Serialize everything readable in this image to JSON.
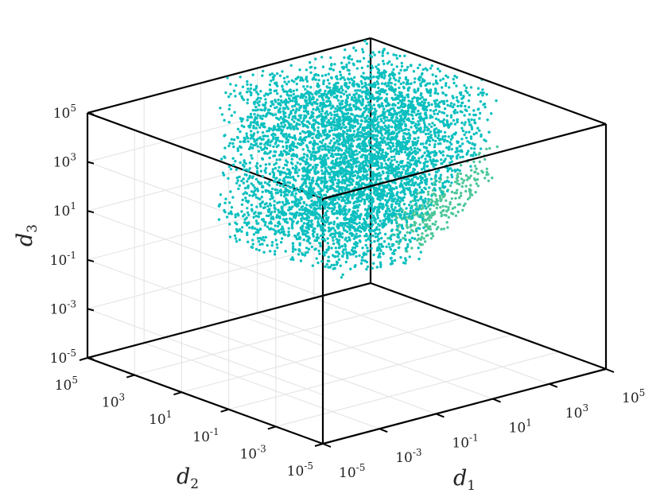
{
  "chart_data": {
    "type": "scatter",
    "projection": "3d",
    "scale": {
      "x": "log",
      "y": "log",
      "z": "log"
    },
    "grid": true,
    "box": true,
    "axes": {
      "x": {
        "label": "d",
        "label_sub": "1",
        "range": [
          1e-05,
          100000.0
        ],
        "ticks": [
          {
            "base": "10",
            "exp": "-5",
            "value": 1e-05
          },
          {
            "base": "10",
            "exp": "-3",
            "value": 0.001
          },
          {
            "base": "10",
            "exp": "-1",
            "value": 0.1
          },
          {
            "base": "10",
            "exp": "1",
            "value": 10.0
          },
          {
            "base": "10",
            "exp": "3",
            "value": 1000.0
          },
          {
            "base": "10",
            "exp": "5",
            "value": 100000.0
          }
        ]
      },
      "y": {
        "label": "d",
        "label_sub": "2",
        "range": [
          1e-05,
          100000.0
        ],
        "ticks": [
          {
            "base": "10",
            "exp": "-5",
            "value": 1e-05
          },
          {
            "base": "10",
            "exp": "-3",
            "value": 0.001
          },
          {
            "base": "10",
            "exp": "-1",
            "value": 0.1
          },
          {
            "base": "10",
            "exp": "1",
            "value": 10.0
          },
          {
            "base": "10",
            "exp": "3",
            "value": 1000.0
          },
          {
            "base": "10",
            "exp": "5",
            "value": 100000.0
          }
        ]
      },
      "z": {
        "label": "d",
        "label_sub": "3",
        "range": [
          1e-05,
          100000.0
        ],
        "ticks": [
          {
            "base": "10",
            "exp": "-5",
            "value": 1e-05
          },
          {
            "base": "10",
            "exp": "-3",
            "value": 0.001
          },
          {
            "base": "10",
            "exp": "-1",
            "value": 0.1
          },
          {
            "base": "10",
            "exp": "1",
            "value": 10.0
          },
          {
            "base": "10",
            "exp": "3",
            "value": 1000.0
          },
          {
            "base": "10",
            "exp": "5",
            "value": 100000.0
          }
        ]
      }
    },
    "point_cloud": {
      "description_of_extent": "dense cloud of points",
      "log10_x_range": [
        -0.5,
        5
      ],
      "log10_y_range": [
        -0.5,
        5
      ],
      "log10_z_range": [
        -1.5,
        5
      ],
      "constraint": "log10(z) >= log10(x) - log10(y) - 4",
      "color_primary": "#0bbfbf",
      "color_secondary": "#4cc79a"
    },
    "colors": {
      "box": "#000000",
      "grid": "#e6e6e6",
      "text": "#222222",
      "background": "#ffffff"
    }
  }
}
